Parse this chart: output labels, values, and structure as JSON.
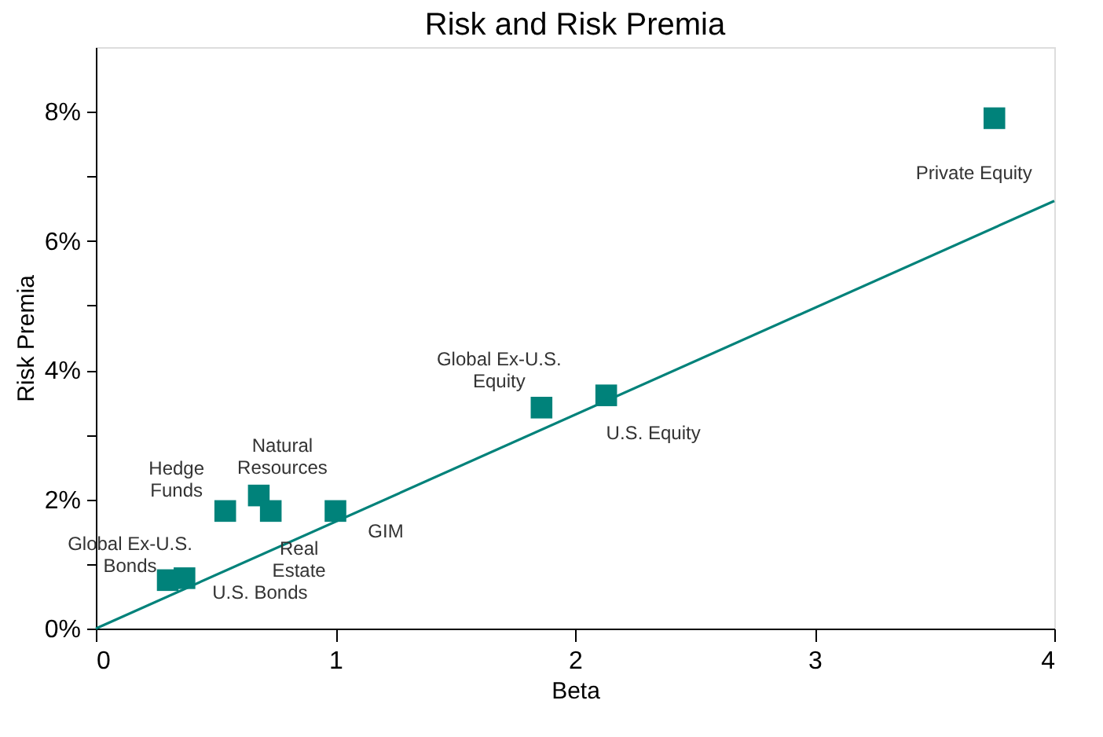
{
  "chart_data": {
    "type": "scatter",
    "title": "Risk and Risk Premia",
    "xlabel": "Beta",
    "ylabel": "Risk Premia",
    "x": [
      0.3,
      0.37,
      0.54,
      0.68,
      0.73,
      1.0,
      1.86,
      2.13,
      3.75
    ],
    "series": [
      {
        "color": "#00827a",
        "marker": "square",
        "values": [
          0.75,
          0.78,
          1.82,
          2.06,
          1.82,
          1.82,
          3.42,
          3.61,
          7.9
        ]
      },
      {
        "type": "line",
        "color": "#00827a",
        "x": [
          0,
          4
        ],
        "values": [
          0,
          6.62
        ],
        "marker": "none",
        "line_style": "solid"
      }
    ],
    "annotations": [
      "Global Ex-U.S.\nBonds",
      "U.S. Bonds",
      "Hedge\nFunds",
      "Natural\nResources",
      "Real\nEstate",
      "GIM",
      "Global Ex-U.S.\nEquity",
      "U.S. Equity",
      "Private Equity"
    ],
    "xlim": [
      0,
      4
    ],
    "ylim": [
      0,
      9
    ],
    "xticks": [
      0,
      1,
      2,
      3,
      4
    ],
    "yticks": [
      {
        "value": 0,
        "label": "0%"
      },
      {
        "value": 1,
        "label": null
      },
      {
        "value": 2,
        "label": "2%"
      },
      {
        "value": 3,
        "label": null
      },
      {
        "value": 4,
        "label": "4%"
      },
      {
        "value": 5,
        "label": null
      },
      {
        "value": 6,
        "label": "6%"
      },
      {
        "value": 7,
        "label": null
      },
      {
        "value": 8,
        "label": "8%"
      }
    ],
    "grid": false
  }
}
